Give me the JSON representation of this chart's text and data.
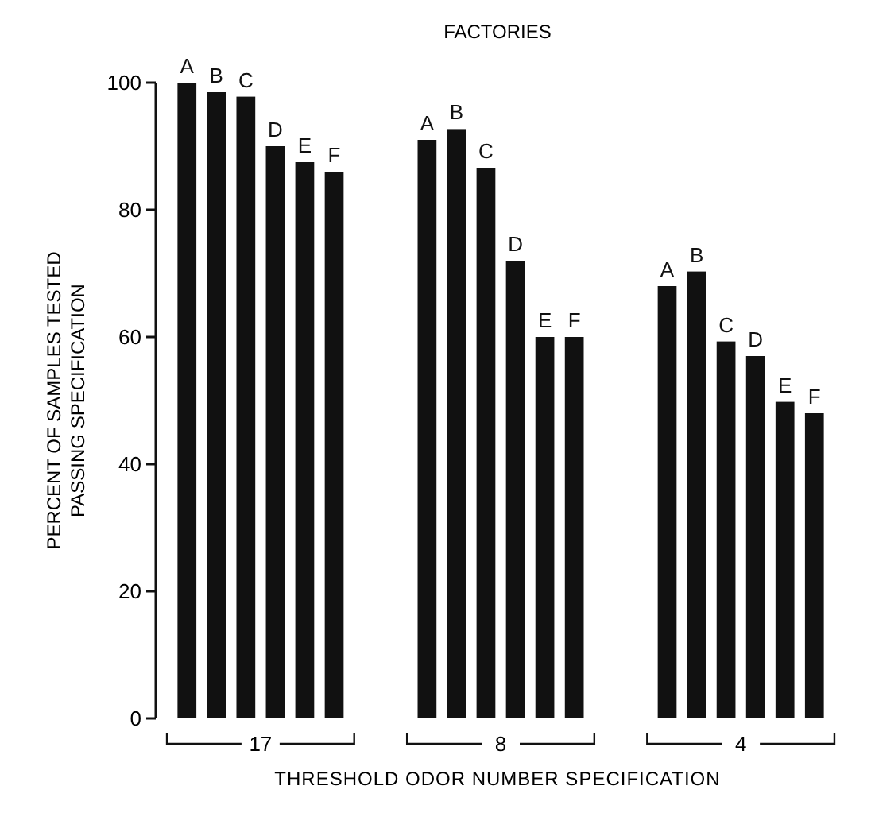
{
  "chart_data": {
    "type": "bar",
    "legend_title": "FACTORIES",
    "xlabel": "THRESHOLD ODOR NUMBER SPECIFICATION",
    "ylabel": "PERCENT OF SAMPLES TESTED\nPASSING SPECIFICATION",
    "categories": [
      "17",
      "8",
      "4"
    ],
    "series": [
      {
        "name": "A",
        "color": "#111111",
        "values": [
          100,
          91,
          68
        ]
      },
      {
        "name": "B",
        "color": "#111111",
        "values": [
          98.5,
          92.7,
          70.3
        ]
      },
      {
        "name": "C",
        "color": "#111111",
        "values": [
          97.8,
          86.6,
          59.3
        ]
      },
      {
        "name": "D",
        "color": "#111111",
        "values": [
          90,
          72,
          57
        ]
      },
      {
        "name": "E",
        "color": "#111111",
        "values": [
          87.5,
          60,
          49.8
        ]
      },
      {
        "name": "F",
        "color": "#111111",
        "values": [
          86,
          60,
          48
        ]
      }
    ],
    "ylim": [
      0,
      100
    ],
    "yticks": [
      0,
      20,
      40,
      60,
      80,
      100
    ],
    "grid": false
  }
}
